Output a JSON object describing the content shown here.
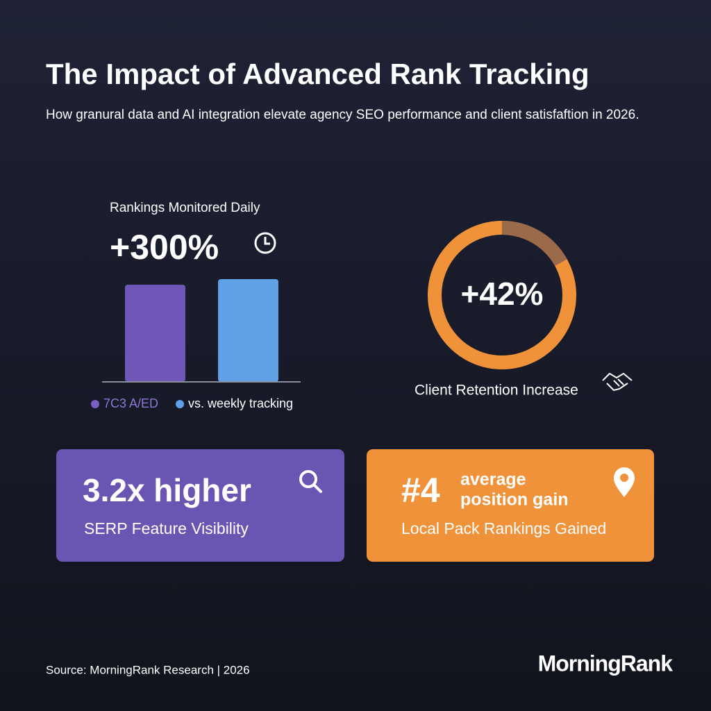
{
  "header": {
    "title": "The Impact of Advanced Rank Tracking",
    "subtitle": "How granural data and AI integration elevate agency SEO performance and client satisfaftion in 2026."
  },
  "rankings": {
    "label": "Rankings Monitored Daily",
    "value": "+300%",
    "legend": [
      "7C3 A/ED",
      "vs. weekly tracking"
    ]
  },
  "retention": {
    "value": "+42%",
    "label": "Client Retention Increase"
  },
  "cards": [
    {
      "value": "3.2x higher",
      "label": "SERP Feature Visibility"
    },
    {
      "value": "#4",
      "note": [
        "average",
        "position gain"
      ],
      "label": "Local Pack Rankings Gained"
    }
  ],
  "footer": {
    "source": "Source: MorningRank Research | 2026",
    "brand": "MorningRank"
  }
}
